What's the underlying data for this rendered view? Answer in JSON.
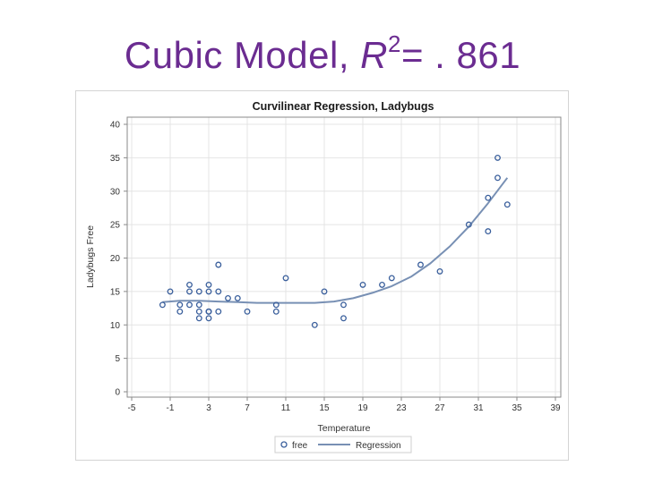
{
  "slide": {
    "title_main": "Cubic Model, ",
    "title_var": "R",
    "title_sup": "2",
    "title_rest": "= . 861"
  },
  "colors": {
    "title": "#6b2c91",
    "series": "#3a5f9c",
    "regression": "#7890b4",
    "grid": "#e4e4e4",
    "axis": "#8a8a8a"
  },
  "chart_data": {
    "type": "scatter",
    "title": "Curvilinear Regression, Ladybugs",
    "xlabel": "Temperature",
    "ylabel": "Ladybugs Free",
    "xlim": [
      -5,
      39
    ],
    "ylim": [
      0,
      40
    ],
    "xticks": [
      -5,
      -1,
      3,
      7,
      11,
      15,
      19,
      23,
      27,
      31,
      35,
      39
    ],
    "yticks": [
      0,
      5,
      10,
      15,
      20,
      25,
      30,
      35,
      40
    ],
    "grid": true,
    "legend_position": "bottom",
    "series": [
      {
        "name": "free",
        "kind": "points",
        "x": [
          -1.8,
          -1.0,
          0.0,
          0.0,
          1.0,
          1.0,
          1.0,
          2.0,
          2.0,
          2.0,
          2.0,
          3.0,
          3.0,
          3.0,
          3.0,
          3.0,
          3.0,
          4.0,
          4.0,
          4.0,
          5.0,
          6.0,
          7.0,
          10.0,
          10.0,
          11.0,
          14.0,
          15.0,
          17.0,
          17.0,
          19.0,
          21.0,
          22.0,
          25.0,
          27.0,
          30.0,
          32.0,
          32.0,
          33.0,
          33.0,
          34.0
        ],
        "y": [
          13,
          15,
          13,
          12,
          16,
          15,
          13,
          15,
          13,
          12,
          11,
          16,
          15,
          12,
          12,
          11,
          12,
          19,
          15,
          12,
          14,
          14,
          12,
          13,
          12,
          17,
          10,
          15,
          13,
          11,
          16,
          16,
          17,
          19,
          18,
          25,
          29,
          24,
          35,
          32,
          28
        ]
      },
      {
        "name": "Regression",
        "kind": "line",
        "x": [
          -1.8,
          0,
          2,
          4,
          6,
          8,
          10,
          12,
          14,
          16,
          18,
          20,
          22,
          24,
          26,
          28,
          30,
          32,
          34
        ],
        "y": [
          13.4,
          13.6,
          13.6,
          13.5,
          13.4,
          13.3,
          13.3,
          13.3,
          13.3,
          13.5,
          14.0,
          14.8,
          15.8,
          17.2,
          19.2,
          21.7,
          24.7,
          28.2,
          32.0
        ]
      }
    ],
    "legend": [
      "free",
      "Regression"
    ]
  }
}
